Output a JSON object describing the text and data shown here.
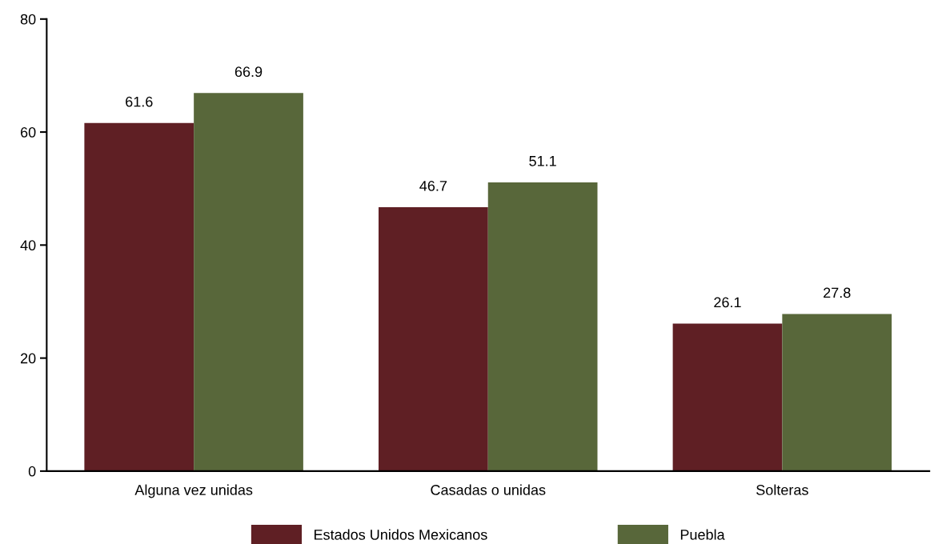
{
  "chart_data": {
    "type": "bar",
    "categories": [
      "Alguna vez unidas",
      "Casadas o unidas",
      "Solteras"
    ],
    "series": [
      {
        "name": "Estados Unidos Mexicanos",
        "color": "#5f1f24",
        "values": [
          61.6,
          46.7,
          26.1
        ]
      },
      {
        "name": "Puebla",
        "color": "#58673a",
        "values": [
          66.9,
          51.1,
          27.8
        ]
      }
    ],
    "ylim": [
      0,
      80
    ],
    "yticks": [
      0,
      20,
      40,
      60,
      80
    ],
    "data_labels": true,
    "legend": "bottom",
    "grid": false
  }
}
